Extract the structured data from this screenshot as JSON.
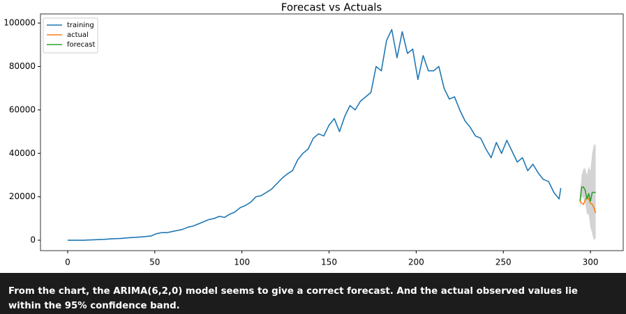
{
  "chart_data": {
    "type": "line",
    "title": "Forecast vs Actuals",
    "xlim": [
      -15.6,
      318.8
    ],
    "ylim": [
      -4800,
      104200
    ],
    "xticks": [
      0,
      50,
      100,
      150,
      200,
      250,
      300
    ],
    "yticks": [
      0,
      20000,
      40000,
      60000,
      80000,
      100000
    ],
    "legend": "upper left",
    "series": [
      {
        "name": "training",
        "color": "#1f77b4",
        "x": [
          0,
          3,
          6,
          9,
          12,
          15,
          18,
          21,
          24,
          27,
          30,
          33,
          36,
          39,
          42,
          45,
          48,
          51,
          54,
          57,
          60,
          63,
          66,
          69,
          72,
          75,
          78,
          81,
          84,
          87,
          90,
          93,
          96,
          99,
          102,
          105,
          108,
          111,
          114,
          117,
          120,
          123,
          126,
          129,
          132,
          135,
          138,
          141,
          144,
          147,
          150,
          153,
          156,
          159,
          162,
          165,
          168,
          171,
          174,
          177,
          180,
          183,
          186,
          189,
          192,
          195,
          198,
          201,
          204,
          207,
          210,
          213,
          216,
          219,
          222,
          225,
          228,
          231,
          234,
          237,
          240,
          243,
          246,
          249,
          252,
          255,
          258,
          261,
          264,
          267,
          270,
          273,
          276,
          279,
          282,
          283
        ],
        "values": [
          0,
          0,
          0,
          0,
          100,
          200,
          300,
          400,
          600,
          700,
          800,
          1000,
          1200,
          1300,
          1500,
          1700,
          2000,
          3000,
          3500,
          3500,
          4000,
          4500,
          5000,
          6000,
          6500,
          7500,
          8500,
          9500,
          10000,
          11000,
          10500,
          12000,
          13000,
          15000,
          16000,
          17500,
          20000,
          20500,
          22000,
          23500,
          26000,
          28500,
          30500,
          32000,
          37000,
          40000,
          42000,
          47000,
          49000,
          48000,
          53000,
          56000,
          50000,
          57000,
          62000,
          60000,
          64000,
          66000,
          68000,
          80000,
          78000,
          92000,
          97000,
          84000,
          96000,
          86000,
          88000,
          74000,
          85000,
          78000,
          78000,
          80000,
          70000,
          65000,
          66000,
          60000,
          55000,
          52000,
          48000,
          47000,
          42000,
          38000,
          45000,
          40000,
          46000,
          41000,
          36000,
          38000,
          32000,
          35000,
          31000,
          28000,
          27000,
          22000,
          19000,
          24000
        ]
      },
      {
        "name": "actual",
        "color": "#ff7f0e",
        "x": [
          294,
          295,
          296,
          297,
          298,
          299,
          300,
          301,
          302,
          303
        ],
        "values": [
          18000,
          17000,
          16500,
          18500,
          20000,
          19000,
          17000,
          16500,
          15000,
          12500
        ]
      },
      {
        "name": "forecast",
        "color": "#2ca02c",
        "x": [
          294,
          295,
          296,
          297,
          298,
          299,
          300,
          301,
          302,
          303
        ],
        "values": [
          18000,
          24500,
          24500,
          23000,
          19000,
          21500,
          18000,
          22000,
          22000,
          22000
        ]
      }
    ],
    "confidence_band": {
      "color": "#d3d3d3",
      "x": [
        294,
        295,
        296,
        297,
        298,
        299,
        300,
        301,
        302,
        303
      ],
      "lower": [
        15000,
        20000,
        19500,
        17000,
        12000,
        12000,
        6000,
        3000,
        0,
        1000
      ],
      "upper": [
        21000,
        30000,
        33000,
        33000,
        30000,
        34000,
        32000,
        40000,
        44000,
        44000
      ]
    }
  },
  "caption": "From the chart, the ARIMA(6,2,0) model seems to give a correct forecast. And the actual observed values lie within the 95% confidence band."
}
